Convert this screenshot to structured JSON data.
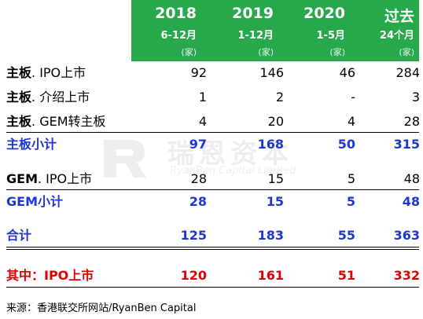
{
  "header": {
    "cols": [
      {
        "year": "2018",
        "sub": "6-12月",
        "unit": "(家)"
      },
      {
        "year": "2019",
        "sub": "1-12月",
        "unit": "(家)"
      },
      {
        "year": "2020",
        "sub": "1-5月",
        "unit": "(家)"
      },
      {
        "year": "过去",
        "sub": "24个月",
        "unit": "(家)"
      }
    ]
  },
  "rows": {
    "main_ipo": {
      "label_bold": "主板",
      "label_rest": ". IPO上市",
      "values": [
        "92",
        "146",
        "46",
        "284"
      ]
    },
    "main_intro": {
      "label_bold": "主板",
      "label_rest": ". 介绍上市",
      "values": [
        "1",
        "2",
        "-",
        "3"
      ]
    },
    "main_gem": {
      "label_bold": "主板",
      "label_rest": ". GEM转主板",
      "values": [
        "4",
        "20",
        "4",
        "28"
      ]
    },
    "main_sub": {
      "label": "主板小计",
      "values": [
        "97",
        "168",
        "50",
        "315"
      ]
    },
    "gem_ipo": {
      "label_bold": "GEM",
      "label_rest": ". IPO上市",
      "values": [
        "28",
        "15",
        "5",
        "48"
      ]
    },
    "gem_sub": {
      "label": "GEM小计",
      "values": [
        "28",
        "15",
        "5",
        "48"
      ]
    },
    "total": {
      "label": "合计",
      "values": [
        "125",
        "183",
        "55",
        "363"
      ]
    },
    "ipo_total": {
      "label": "其中：IPO上市",
      "values": [
        "120",
        "161",
        "51",
        "332"
      ]
    }
  },
  "watermark": {
    "cn": "瑞恩资本",
    "en": "RyanBen Capital Limited"
  },
  "source": "来源：香港联交所网站/RyanBen Capital",
  "colors": {
    "header_bg": "#27a84a",
    "subtotal": "#1f36d6",
    "ipo": "#e00000"
  }
}
